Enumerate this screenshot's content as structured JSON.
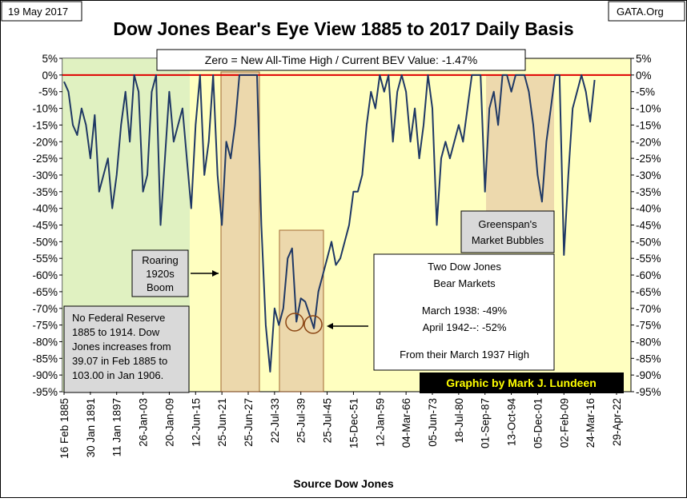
{
  "chart_data": {
    "type": "line",
    "title": "Dow Jones Bear's Eye View 1885 to 2017 Daily Basis",
    "date": "19 May 2017",
    "source_site": "GATA.Org",
    "subtitle": "Zero = New All-Time High / Current BEV Value: -1.47%",
    "x_label": "Source Dow Jones",
    "credit": "Graphic by Mark J. Lundeen",
    "notes": {
      "no_fed": [
        "No Federal Reserve",
        "1885  to 1914.   Dow",
        "Jones increases from",
        "39.07  in Feb 1885  to",
        "103.00  in Jan 1906."
      ],
      "roaring": [
        "Roaring",
        "1920s",
        "Boom"
      ],
      "greenspan": [
        "Greenspan's",
        "Market Bubbles"
      ],
      "bear": [
        "Two Dow Jones",
        "Bear Markets",
        "March 1938: -49%",
        "April 1942--: -52%",
        "From their March 1937 High"
      ]
    },
    "categories": [
      "16 Feb 1885",
      null,
      null,
      null,
      null,
      null,
      "30 Jan 1891",
      null,
      null,
      null,
      null,
      null,
      "11 Jan 1897",
      null,
      null,
      null,
      null,
      null,
      "26-Jan-03",
      null,
      null,
      null,
      null,
      null,
      "20-Jan-09",
      null,
      null,
      null,
      null,
      null,
      "12-Jun-15",
      null,
      null,
      null,
      null,
      null,
      "25-Jun-21",
      null,
      null,
      null,
      null,
      null,
      "25-Jun-27",
      null,
      null,
      null,
      null,
      null,
      "22-Jul-33",
      null,
      null,
      null,
      null,
      null,
      "25-Jul-39",
      null,
      null,
      null,
      null,
      null,
      "25-Jul-45",
      null,
      null,
      null,
      null,
      null,
      "15-Dec-51",
      null,
      null,
      null,
      null,
      null,
      "12-Jan-59",
      null,
      null,
      null,
      null,
      null,
      "04-Mar-66",
      null,
      null,
      null,
      null,
      null,
      "05-Jun-73",
      null,
      null,
      null,
      null,
      null,
      "18-Jul-80",
      null,
      null,
      null,
      null,
      null,
      "01-Sep-87",
      null,
      null,
      null,
      null,
      null,
      "13-Oct-94",
      null,
      null,
      null,
      null,
      null,
      "05-Dec-01",
      null,
      null,
      null,
      null,
      null,
      "02-Feb-09",
      null,
      null,
      null,
      null,
      null,
      "24-Mar-16",
      null,
      null,
      null,
      null,
      null,
      "29-Apr-22"
    ],
    "series": [
      {
        "name": "Dow Jones BEV",
        "color": "#1f3864",
        "values": [
          -2,
          -5,
          -15,
          -18,
          -10,
          -15,
          -25,
          -12,
          -35,
          -30,
          -25,
          -40,
          -30,
          -15,
          -5,
          -20,
          0,
          -5,
          -35,
          -30,
          -5,
          0,
          -45,
          -25,
          -5,
          -20,
          -15,
          -10,
          -25,
          -40,
          -15,
          0,
          -30,
          -20,
          0,
          -30,
          -45,
          -20,
          -25,
          -15,
          0,
          0,
          0,
          0,
          0,
          -45,
          -75,
          -89,
          -70,
          -75,
          -70,
          -55,
          -52,
          -74,
          -67,
          -68,
          -72,
          -76,
          -65,
          -60,
          -55,
          -50,
          -57,
          -55,
          -50,
          -45,
          -35,
          -35,
          -30,
          -15,
          -5,
          -10,
          0,
          -5,
          0,
          -20,
          -5,
          0,
          -5,
          -20,
          -10,
          -25,
          -15,
          0,
          -10,
          -45,
          -25,
          -20,
          -25,
          -20,
          -15,
          -20,
          -10,
          0,
          0,
          0,
          -35,
          -10,
          -5,
          -15,
          0,
          0,
          -5,
          0,
          0,
          0,
          -5,
          -15,
          -30,
          -38,
          -20,
          -10,
          0,
          0,
          -54,
          -30,
          -10,
          -5,
          0,
          -5,
          -14,
          -1.47,
          null,
          null,
          null,
          null,
          null
        ]
      }
    ],
    "ylim": [
      -95,
      5
    ],
    "yticks": [
      {
        "value": 5,
        "label": "5%"
      },
      {
        "value": 0,
        "label": "0%"
      },
      {
        "value": -5,
        "label": "-5%"
      },
      {
        "value": -10,
        "label": "-10%"
      },
      {
        "value": -15,
        "label": "-15%"
      },
      {
        "value": -20,
        "label": "-20%"
      },
      {
        "value": -25,
        "label": "-25%"
      },
      {
        "value": -30,
        "label": "-30%"
      },
      {
        "value": -35,
        "label": "-35%"
      },
      {
        "value": -40,
        "label": "-40%"
      },
      {
        "value": -45,
        "label": "-45%"
      },
      {
        "value": -50,
        "label": "-50%"
      },
      {
        "value": -55,
        "label": "-55%"
      },
      {
        "value": -60,
        "label": "-60%"
      },
      {
        "value": -65,
        "label": "-65%"
      },
      {
        "value": -70,
        "label": "-70%"
      },
      {
        "value": -75,
        "label": "-75%"
      },
      {
        "value": -80,
        "label": "-80%"
      },
      {
        "value": -85,
        "label": "-85%"
      },
      {
        "value": -90,
        "label": "-90%"
      },
      {
        "value": -95,
        "label": "-95%"
      }
    ],
    "zero_line_color": "#e00000",
    "plot_background": "#ffffc0"
  }
}
